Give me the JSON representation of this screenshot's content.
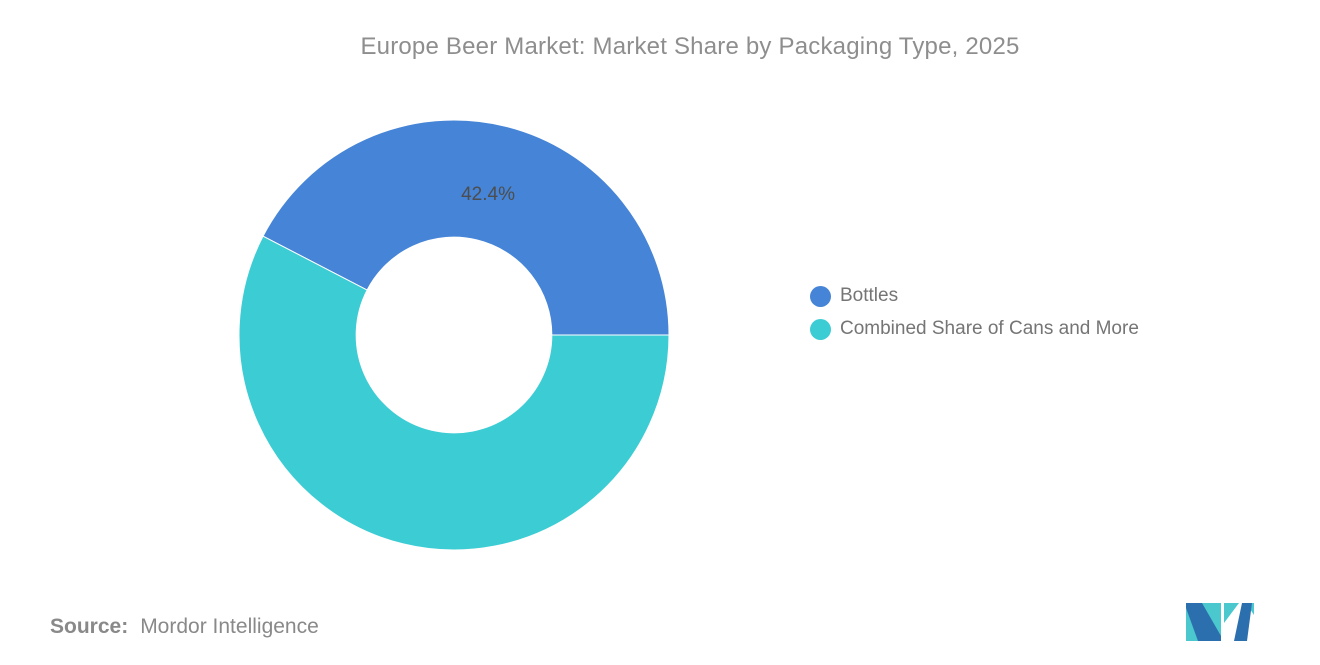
{
  "title": "Europe Beer Market: Market Share by Packaging Type, 2025",
  "chart_data": {
    "type": "pie",
    "subtype": "donut",
    "title": "Europe Beer Market: Market Share by Packaging Type, 2025",
    "units": "%",
    "series": [
      {
        "name": "Bottles",
        "value": 42.4,
        "label": "42.4%",
        "color": "#4584D6"
      },
      {
        "name": "Combined Share of Cans and More",
        "value": 57.6,
        "label": "",
        "color": "#3BCCD4"
      }
    ],
    "legend_position": "right",
    "start_angle_deg": -62.64,
    "inner_radius_ratio": 0.455,
    "slice_border_color": "#FFFFFF"
  },
  "legend": {
    "items": [
      {
        "label": "Bottles",
        "color": "#4584D6"
      },
      {
        "label": "Combined Share of Cans and More",
        "color": "#3BCCD4"
      }
    ]
  },
  "source": {
    "prefix": "Source:",
    "text": "Mordor Intelligence"
  },
  "logo": {
    "name": "mordor-intelligence-logo",
    "teal": "#4BC7CE",
    "blue": "#2C6FAE"
  },
  "colors": {
    "background": "#FFFFFF",
    "title_text": "#8E8E8E",
    "legend_text": "#757575",
    "slice_label_text": "#4D4D4D",
    "source_text": "#898989"
  }
}
